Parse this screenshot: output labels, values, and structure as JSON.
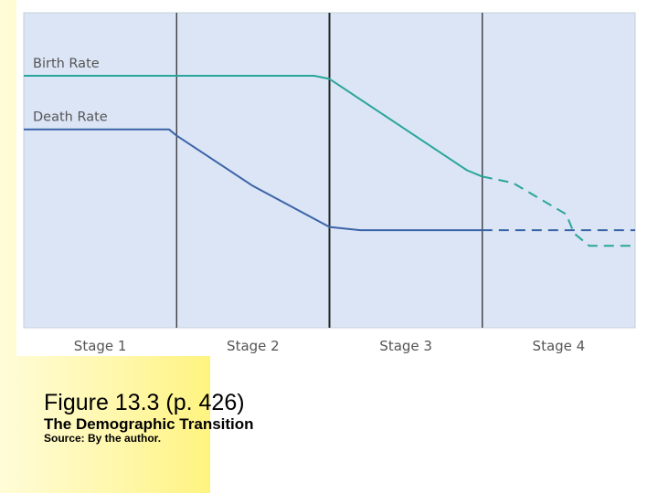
{
  "slide": {
    "figure_title": "Figure 13.3 (p. 426)",
    "figure_subtitle": "The Demographic Transition",
    "source": "Source: By the author."
  },
  "colors": {
    "plot_background": "#dbe5f5",
    "birth_rate": "#2aa59a",
    "death_rate": "#3b63a8",
    "divider": "#222222",
    "stage_label": "#555555"
  },
  "chart_data": {
    "type": "line",
    "title": "",
    "xlabel": "",
    "ylabel": "",
    "x_range": [
      0,
      4
    ],
    "y_range": [
      0,
      100
    ],
    "stages": [
      "Stage 1",
      "Stage 2",
      "Stage 3",
      "Stage 4"
    ],
    "stage_boundaries": [
      1,
      2,
      3
    ],
    "grid": false,
    "series": [
      {
        "name": "Birth Rate",
        "color": "#2aa59a",
        "points": [
          [
            0,
            80
          ],
          [
            1,
            80
          ],
          [
            1.9,
            80
          ],
          [
            2,
            79
          ],
          [
            2.9,
            50
          ],
          [
            3,
            48
          ],
          [
            3.2,
            46
          ],
          [
            3.55,
            36
          ],
          [
            3.6,
            30
          ],
          [
            3.7,
            26
          ],
          [
            4,
            26
          ]
        ],
        "projected_from_x": 3
      },
      {
        "name": "Death Rate",
        "color": "#3b63a8",
        "points": [
          [
            0,
            63
          ],
          [
            0.95,
            63
          ],
          [
            1,
            61
          ],
          [
            1.5,
            45
          ],
          [
            2,
            32
          ],
          [
            2.2,
            31
          ],
          [
            3,
            31
          ],
          [
            4,
            31
          ]
        ],
        "projected_from_x": 3
      }
    ]
  }
}
